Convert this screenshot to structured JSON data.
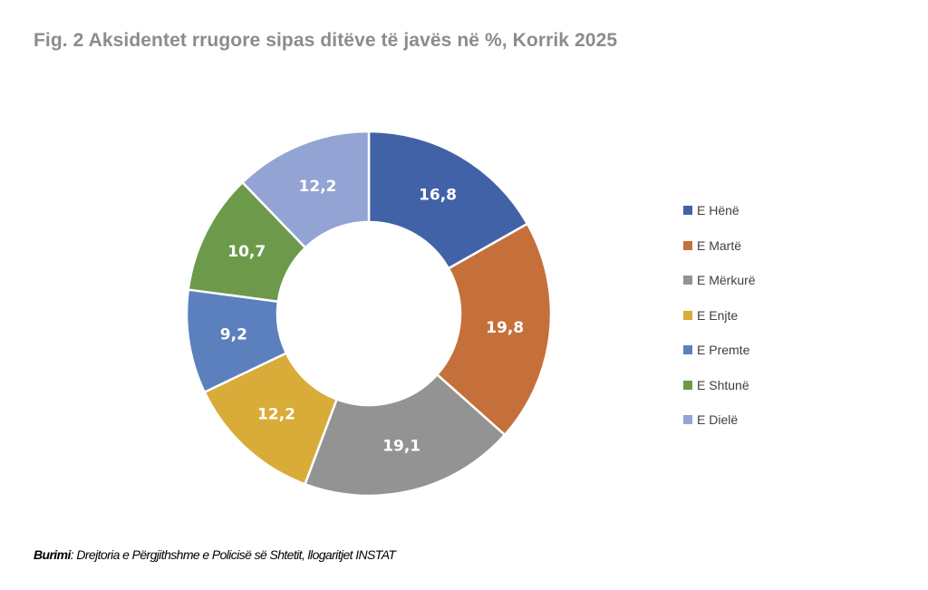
{
  "title": "Fig. 2 Aksidentet rrugore sipas ditëve të javës në %, Korrik 2025",
  "chart_data": {
    "type": "pie",
    "variant": "donut",
    "title": "Fig. 2 Aksidentet rrugore sipas ditëve të javës në %, Korrik 2025",
    "categories": [
      "E Hënë",
      "E Martë",
      "E Mërkurë",
      "E Enjte",
      "E Premte",
      "E Shtunë",
      "E Dielë"
    ],
    "values": [
      16.8,
      19.8,
      19.1,
      12.2,
      9.2,
      10.7,
      12.2
    ],
    "labels": [
      "16,8",
      "19,8",
      "19,1",
      "12,2",
      "9,2",
      "10,7",
      "12,2"
    ],
    "colors": [
      "#4262A8",
      "#C5703A",
      "#939393",
      "#D9AB38",
      "#5B80BD",
      "#6D9A4A",
      "#93A3D3"
    ],
    "legend_position": "right"
  },
  "source": {
    "label": "Burimi",
    "text": ": Drejtoria e Përgjithshme e Policisë së Shtetit, llogaritjet INSTAT"
  }
}
